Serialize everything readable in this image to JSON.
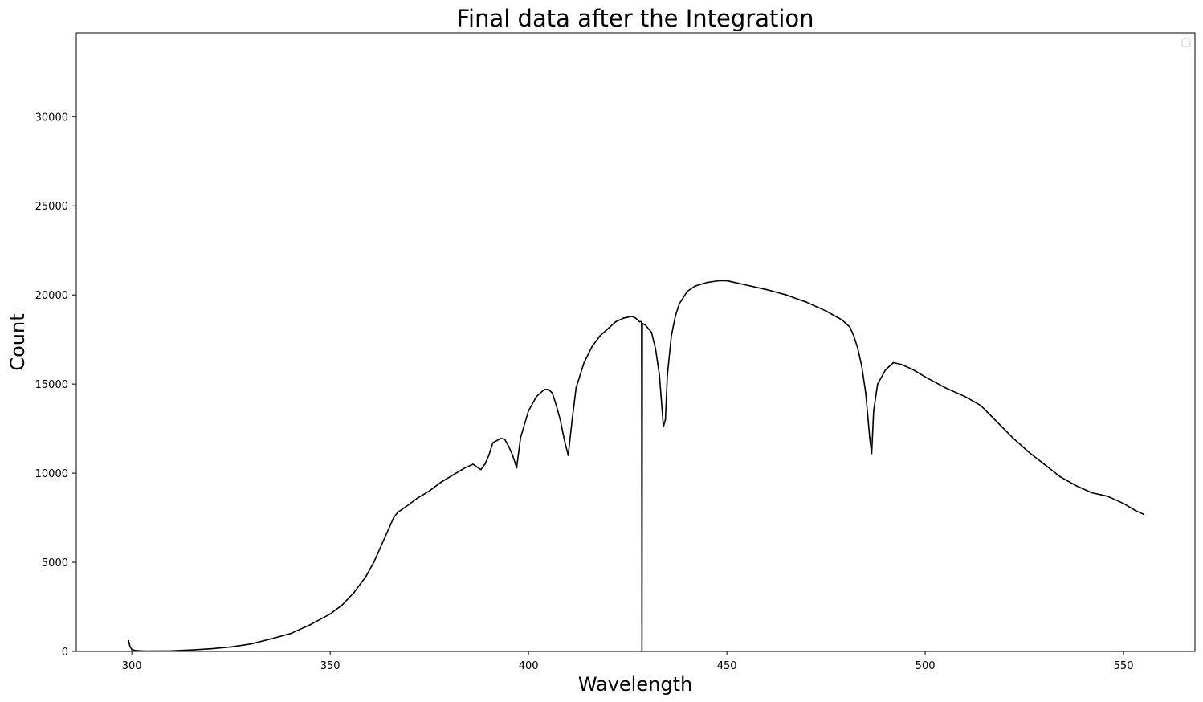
{
  "chart_data": {
    "type": "line",
    "title": "Final data after the Integration",
    "xlabel": "Wavelength",
    "ylabel": "Count",
    "xlim": [
      286,
      568
    ],
    "ylim": [
      0,
      34700
    ],
    "xticks": [
      300,
      350,
      400,
      450,
      500,
      550
    ],
    "yticks": [
      0,
      5000,
      10000,
      15000,
      20000,
      25000,
      30000
    ],
    "grid": false,
    "legend": "top-right (empty)",
    "line_color": "#000000",
    "series": [
      {
        "x": [
          299.2,
          299.5,
          300,
          301,
          303,
          305,
          310,
          315,
          320,
          325,
          330,
          335,
          340,
          345,
          350,
          353,
          356,
          359,
          361,
          363,
          365,
          366,
          367,
          369,
          372,
          375,
          378,
          381,
          384,
          386,
          388,
          389,
          390,
          391,
          393,
          394,
          395,
          396,
          397,
          398,
          400,
          402,
          404,
          405,
          406,
          407,
          408,
          409,
          410,
          411,
          412,
          414,
          416,
          418,
          420,
          422,
          424,
          426,
          427,
          428,
          428.5,
          428.6,
          428.7,
          429.5,
          431,
          432,
          433,
          434,
          434.5,
          435,
          436,
          437,
          438,
          440,
          442,
          445,
          448,
          450,
          452,
          454,
          456,
          460,
          465,
          470,
          475,
          479,
          481,
          482,
          483,
          484,
          485,
          486,
          486.5,
          487,
          488,
          490,
          492,
          494,
          497,
          500,
          505,
          510,
          514,
          518,
          522,
          526,
          530,
          534,
          538,
          542,
          546,
          550,
          553,
          555
        ],
        "y": [
          600,
          300,
          100,
          50,
          20,
          20,
          30,
          80,
          150,
          250,
          420,
          700,
          1000,
          1500,
          2100,
          2600,
          3300,
          4200,
          5000,
          6000,
          7000,
          7500,
          7800,
          8100,
          8600,
          9000,
          9500,
          9900,
          10300,
          10500,
          10200,
          10500,
          11000,
          11700,
          11950,
          11900,
          11500,
          11000,
          10300,
          12000,
          13500,
          14300,
          14700,
          14700,
          14500,
          13800,
          13000,
          11900,
          11000,
          13000,
          14800,
          16200,
          17100,
          17700,
          18100,
          18500,
          18700,
          18800,
          18700,
          18500,
          18500,
          0,
          18400,
          18300,
          17900,
          17000,
          15500,
          12600,
          13000,
          15500,
          17700,
          18800,
          19500,
          20200,
          20500,
          20700,
          20800,
          20800,
          20700,
          20600,
          20500,
          20300,
          20000,
          19600,
          19100,
          18600,
          18200,
          17700,
          17000,
          16000,
          14500,
          12000,
          11100,
          13500,
          15000,
          15800,
          16200,
          16100,
          15800,
          15400,
          14800,
          14300,
          13800,
          12900,
          12000,
          11200,
          10500,
          9800,
          9300,
          8900,
          8700,
          8300,
          7900,
          7700
        ]
      }
    ]
  }
}
